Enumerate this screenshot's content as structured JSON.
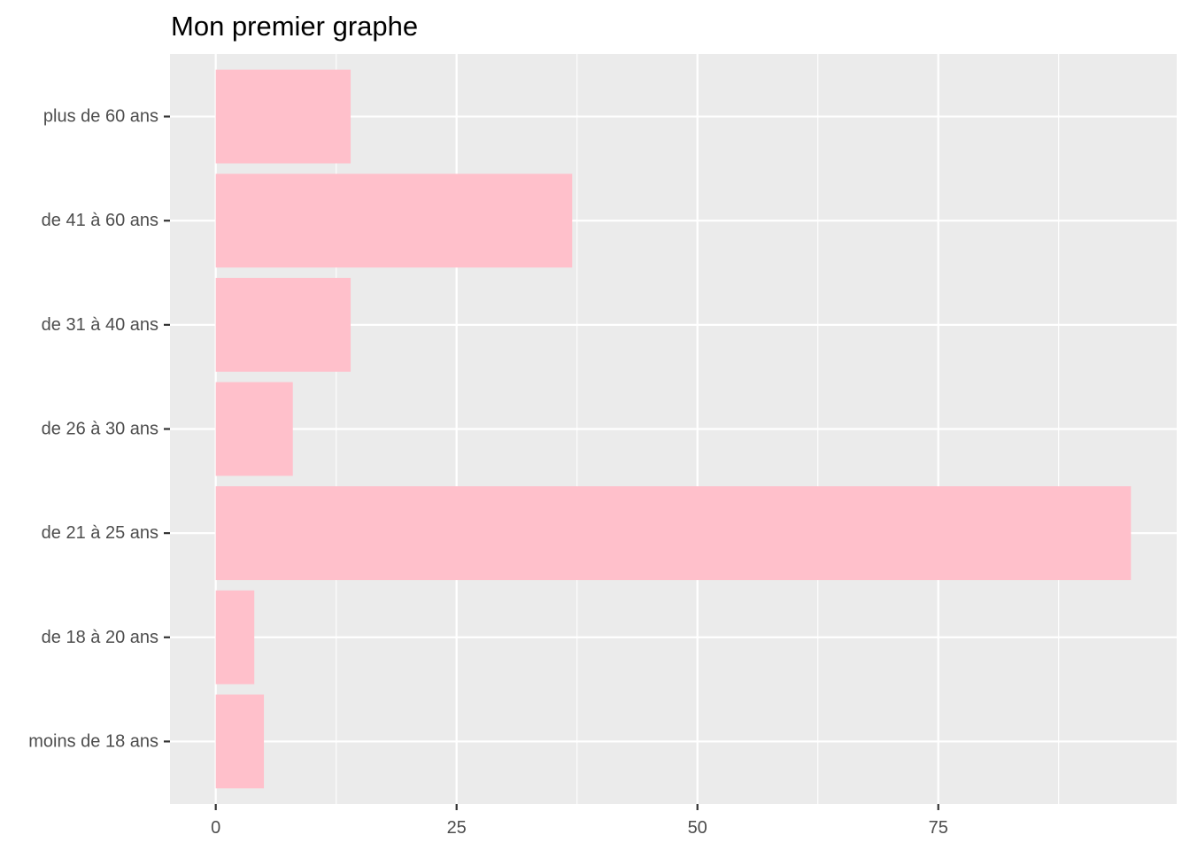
{
  "chart_data": {
    "type": "bar",
    "orientation": "horizontal",
    "title": "Mon premier graphe",
    "xlabel": "",
    "ylabel": "",
    "categories": [
      "moins de 18 ans",
      "de 18 à 20 ans",
      "de 21 à 25 ans",
      "de 26 à 30 ans",
      "de 31 à 40 ans",
      "de 41 à 60 ans",
      "plus de 60 ans"
    ],
    "values": [
      5,
      4,
      95,
      8,
      14,
      37,
      14
    ],
    "xlim": [
      -4.75,
      99.75
    ],
    "x_ticks": [
      0,
      25,
      50,
      75
    ],
    "x_tick_labels": [
      "0",
      "25",
      "50",
      "75"
    ],
    "grid": true,
    "legend": "none",
    "colors": {
      "bar": "#ffc0cb",
      "panel": "#ebebeb",
      "grid": "#ffffff",
      "tick": "#333333",
      "tick_label": "#4d4d4d"
    }
  }
}
